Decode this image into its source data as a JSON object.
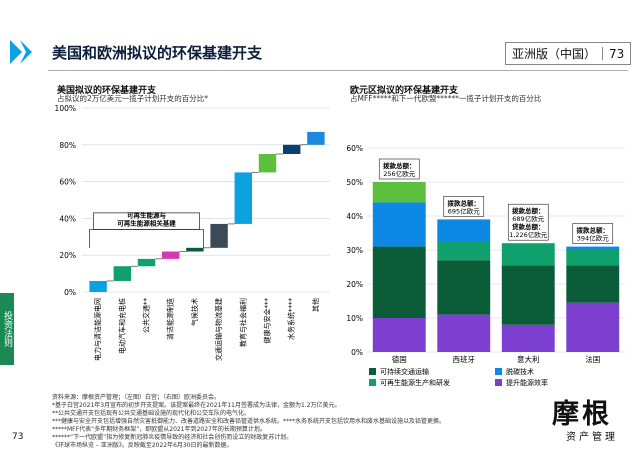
{
  "header": {
    "title": "美国和欧洲拟议的环保基建开支",
    "region": "亚洲版（中国）",
    "page": "73"
  },
  "sidebar": {
    "label": "投资法则"
  },
  "footer": {
    "page": "73",
    "notes": [
      "资料来源：摩根资产管理；（左图）白宫；（右图）欧洲委员会。",
      "*基于白宫2021年3月宣布的初步开支提案。该提案最终在2021年11月签署成为法律，金额为1.2万亿美元。",
      "**公共交通开支包括现有公共交通基础设施的现代化和公交车队的电气化。",
      "***健康与安全开支包括增强自然灾害抵御能力、改善道路安全和改善铅管道供水系统。****水务系统开支包括饮用水和废水基础设施以及铅管更换。",
      "*****MFF代表“多年期财务框架”，即欧盟从2021年到2027年的长期预算计划。",
      "******“下一代欧盟”指为修复新冠肺炎疫情导致的经济和社会创伤而设立的财政复苏计划。",
      "《环球市场纵览 – 亚洲版》。反映截至2022年6月30日的最新数据。"
    ]
  },
  "brand": {
    "name": "摩根",
    "sub": "资产管理"
  },
  "colors": {
    "light_blue": "#0aa3e0",
    "teal": "#10a06e",
    "magenta": "#d43ab0",
    "dark_green": "#0b5d3a",
    "slate": "#3c4a57",
    "lime_green": "#5cbf3e",
    "navy": "#0b3f6e",
    "blue": "#1a8ae0",
    "purple": "#b43bd8",
    "violet": "#7d3fd0",
    "bright_blue": "#0e88e5"
  },
  "chart_data": [
    {
      "type": "bar",
      "subtype": "waterfall",
      "title": "美国拟议的环保基建开支",
      "subtitle": "占拟议的2万亿美元一揽子计划开支的百分比*",
      "ylim": [
        0,
        100
      ],
      "yticks": [
        "0%",
        "20%",
        "40%",
        "60%",
        "80%",
        "100%"
      ],
      "categories": [
        "电力与清洁能源电网",
        "电动汽车和充电桩",
        "公共交通**",
        "清洁能源制造",
        "气候技术",
        "交通运输与物流基建",
        "教育与社会福利",
        "健康与安全***",
        "水务系统****",
        "其他"
      ],
      "values": [
        6,
        8,
        4,
        4,
        2,
        13,
        28,
        10,
        5,
        7
      ],
      "bar_colors": [
        "#0aa3e0",
        "#10a06e",
        "#10a06e",
        "#d43ab0",
        "#0b5d3a",
        "#3c4a57",
        "#0aa3e0",
        "#5cbf3e",
        "#0b3f6e",
        "#1a8ae0",
        "#b43bd8"
      ],
      "annotation": {
        "text": [
          "可再生能源与",
          "可再生能源相关基建"
        ],
        "spans": [
          0,
          4
        ]
      },
      "grid": true
    },
    {
      "type": "bar",
      "subtype": "stacked",
      "title": "欧元区拟议的环保基建开支",
      "subtitle": "占MFF*****和下一代欧盟******一揽子计划开支的百分比",
      "ylim": [
        0,
        60
      ],
      "yticks": [
        "0%",
        "10%",
        "20%",
        "30%",
        "40%",
        "50%",
        "60%"
      ],
      "categories": [
        "德国",
        "西班牙",
        "意大利",
        "法国"
      ],
      "series": [
        {
          "name": "提升能源效率",
          "color": "#7d3fd0",
          "values": [
            10,
            11,
            8,
            14.5
          ]
        },
        {
          "name": "可持续交通运输",
          "color": "#0b5d3a",
          "values": [
            21,
            16,
            17.5,
            11
          ]
        },
        {
          "name": "可再生能源生产和研发",
          "color": "#10a06e",
          "values": [
            0,
            5.5,
            6.5,
            4.5
          ]
        },
        {
          "name": "脱碳技术",
          "color": "#0e88e5",
          "values": [
            13,
            6.5,
            0,
            1
          ]
        },
        {
          "name": "其他",
          "color": "#5cbf3e",
          "values": [
            6,
            0,
            0,
            0
          ]
        }
      ],
      "labels": [
        [
          "拨款总额：",
          "256亿欧元"
        ],
        [
          "拨款总额：",
          "695亿欧元"
        ],
        [
          "拨款总额：",
          "689亿欧元",
          "贷款总额：",
          "1,226亿欧元"
        ],
        [
          "拨款总额：",
          "394亿欧元"
        ]
      ],
      "legend": [
        "可持续交通运输",
        "脱碳技术",
        "可再生能源生产和研发",
        "提升能源效率"
      ],
      "grid": true
    }
  ]
}
